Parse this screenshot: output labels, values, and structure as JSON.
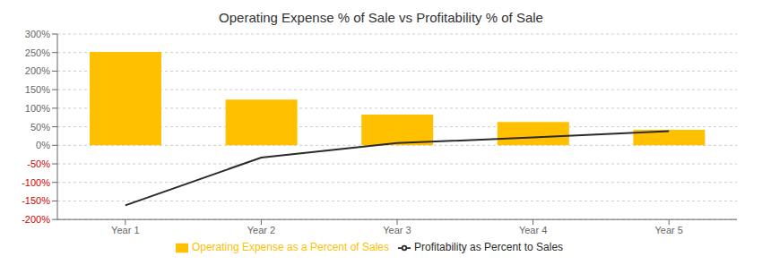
{
  "chart_data": {
    "type": "bar",
    "title": "Operating Expense % of Sale vs Profitability % of Sale",
    "categories": [
      "Year 1",
      "Year 2",
      "Year 3",
      "Year 4",
      "Year 5"
    ],
    "series": [
      {
        "name": "Operating Expense as a Percent of Sales",
        "type": "bar",
        "color": "#FFC000",
        "values": [
          252,
          123,
          83,
          63,
          42
        ]
      },
      {
        "name": "Profitability as Percent to Sales",
        "type": "line",
        "color": "#2a2a2a",
        "values": [
          -162,
          -33,
          6,
          21,
          38
        ]
      }
    ],
    "ylim": [
      -200,
      300
    ],
    "yticks": [
      {
        "value": -200,
        "label": "-200%"
      },
      {
        "value": -150,
        "label": "-150%"
      },
      {
        "value": -100,
        "label": "-100%"
      },
      {
        "value": -50,
        "label": "-50%"
      },
      {
        "value": 0,
        "label": "0%"
      },
      {
        "value": 50,
        "label": "50%"
      },
      {
        "value": 100,
        "label": "100%"
      },
      {
        "value": 150,
        "label": "150%"
      },
      {
        "value": 200,
        "label": "200%"
      },
      {
        "value": 250,
        "label": "250%"
      },
      {
        "value": 300,
        "label": "300%"
      }
    ],
    "grid": true,
    "legend": "bottom"
  }
}
